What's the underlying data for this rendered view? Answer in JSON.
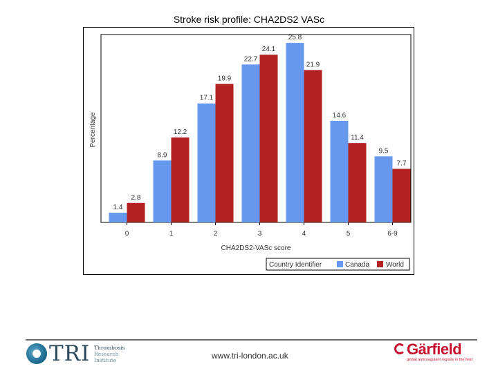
{
  "slide": {
    "title": "Stroke risk profile: CHA2DS2 VASc"
  },
  "footer": {
    "tri_logo_text": "TRI",
    "tri_sub_line1": "Thrombosis",
    "tri_sub_line2": "Research",
    "tri_sub_line3": "Institute",
    "website": "www.tri-london.ac.uk",
    "garfield_logo_text": "Gärfield",
    "garfield_tagline": "global anticoagulant registry in the field"
  },
  "chart_data": {
    "type": "bar",
    "title": "",
    "xlabel": "CHA2DS2-VASc score",
    "ylabel": "Percentage",
    "categories": [
      "0",
      "1",
      "2",
      "3",
      "4",
      "5",
      "6-9"
    ],
    "series": [
      {
        "name": "Canada",
        "values": [
          1.4,
          8.9,
          17.1,
          22.7,
          25.8,
          14.6,
          9.5
        ],
        "color": "#6699ee"
      },
      {
        "name": "World",
        "values": [
          2.8,
          12.2,
          19.9,
          24.1,
          21.9,
          11.4,
          7.7
        ],
        "color": "#b22222"
      }
    ],
    "ylim": [
      0,
      27
    ],
    "grid": false,
    "legend": {
      "title": "Country Identifier",
      "placement": "bottom-right"
    }
  }
}
